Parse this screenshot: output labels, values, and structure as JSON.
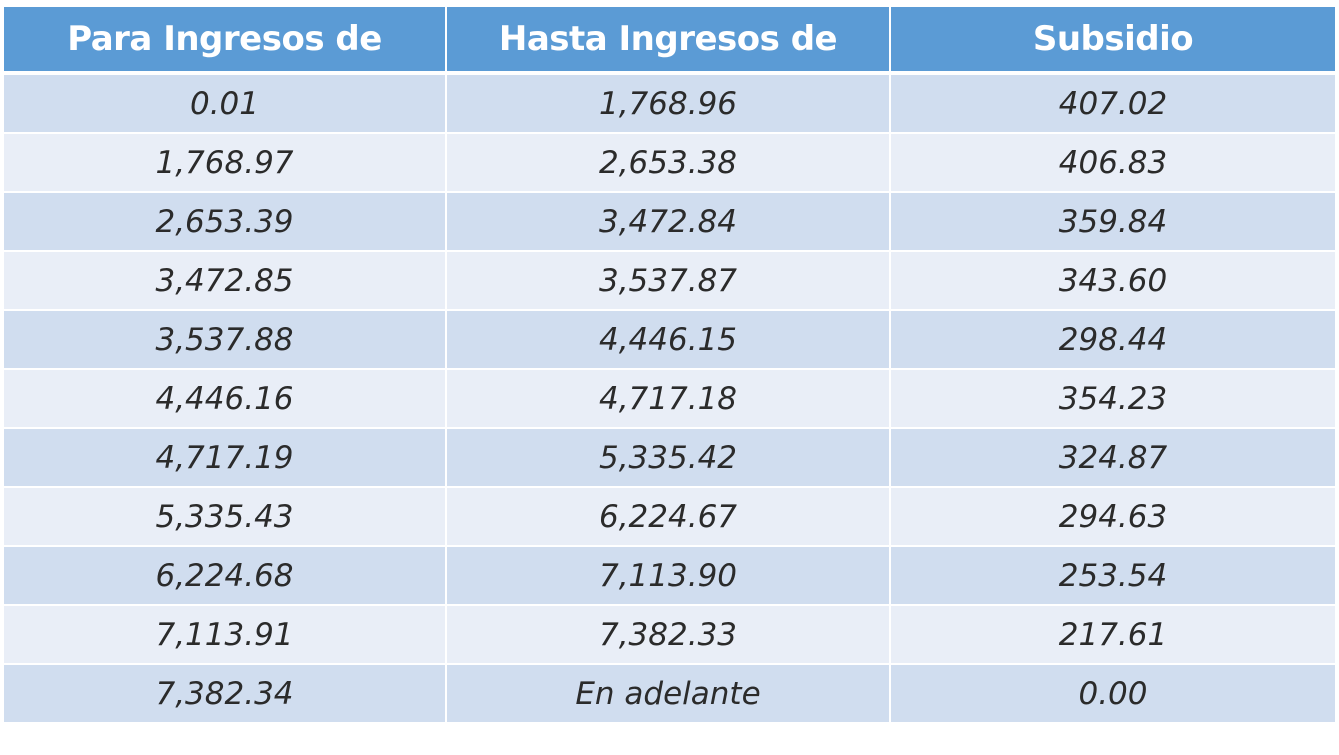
{
  "table": {
    "headers": [
      "Para Ingresos de",
      "Hasta Ingresos de",
      "Subsidio"
    ],
    "rows": [
      [
        "0.01",
        "1,768.96",
        "407.02"
      ],
      [
        "1,768.97",
        "2,653.38",
        "406.83"
      ],
      [
        "2,653.39",
        "3,472.84",
        "359.84"
      ],
      [
        "3,472.85",
        "3,537.87",
        "343.60"
      ],
      [
        "3,537.88",
        "4,446.15",
        "298.44"
      ],
      [
        "4,446.16",
        "4,717.18",
        "354.23"
      ],
      [
        "4,717.19",
        "5,335.42",
        "324.87"
      ],
      [
        "5,335.43",
        "6,224.67",
        "294.63"
      ],
      [
        "6,224.68",
        "7,113.90",
        "253.54"
      ],
      [
        "7,113.91",
        "7,382.33",
        "217.61"
      ],
      [
        "7,382.34",
        "En adelante",
        "0.00"
      ]
    ]
  },
  "colors": {
    "header_bg": "#5b9bd5",
    "row_odd_bg": "#d0ddef",
    "row_even_bg": "#e9eef7",
    "text": "#2b2b2b"
  }
}
